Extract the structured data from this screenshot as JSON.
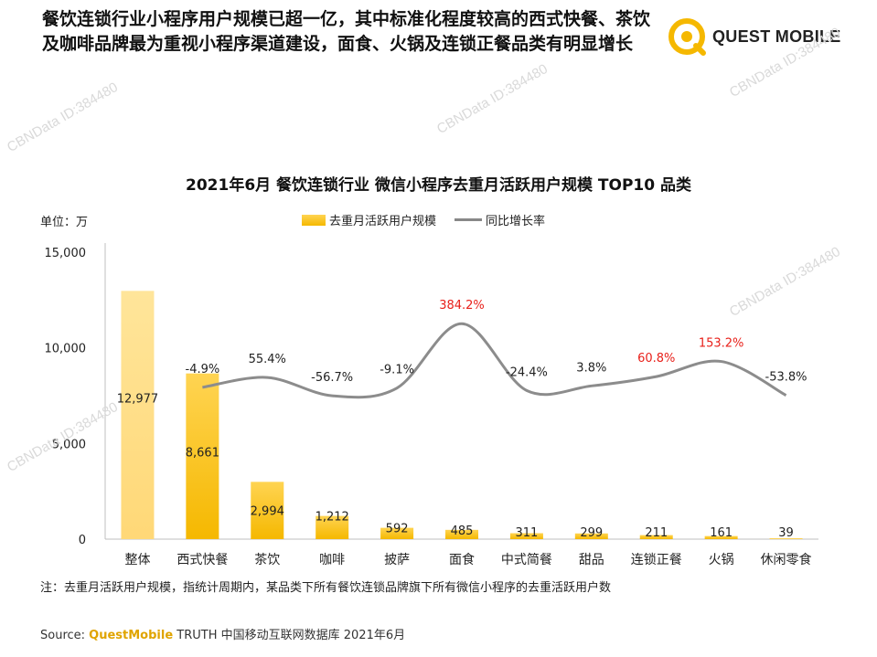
{
  "headline": "餐饮连锁行业小程序用户规模已超一亿，其中标准化程度较高的西式快餐、茶饮及咖啡品牌最为重视小程序渠道建设，面食、火锅及连锁正餐品类有明显增长",
  "logo_text": "QUEST MOBILE",
  "watermark": "CBNData ID:384480",
  "chart_data": {
    "type": "bar",
    "title": "2021年6月 餐饮连锁行业 微信小程序去重月活跃用户规模 TOP10 品类",
    "unit_label": "单位：万",
    "categories": [
      "整体",
      "西式快餐",
      "茶饮",
      "咖啡",
      "披萨",
      "面食",
      "中式简餐",
      "甜品",
      "连锁正餐",
      "火锅",
      "休闲零食"
    ],
    "series": [
      {
        "name": "去重月活跃用户规模",
        "type": "bar",
        "values": [
          12977,
          8661,
          2994,
          1212,
          592,
          485,
          311,
          299,
          211,
          161,
          39
        ],
        "labels": [
          "12,977",
          "8,661",
          "2,994",
          "1,212",
          "592",
          "485",
          "311",
          "299",
          "211",
          "161",
          "39"
        ]
      },
      {
        "name": "同比增长率",
        "type": "line",
        "values": [
          null,
          -4.9,
          55.4,
          -56.7,
          -9.1,
          384.2,
          -24.4,
          3.8,
          60.8,
          153.2,
          -53.8
        ],
        "labels": [
          "",
          "-4.9%",
          "55.4%",
          "-56.7%",
          "-9.1%",
          "384.2%",
          "-24.4%",
          "3.8%",
          "60.8%",
          "153.2%",
          "-53.8%"
        ],
        "highlight": [
          false,
          false,
          false,
          false,
          false,
          true,
          false,
          false,
          true,
          true,
          false
        ]
      }
    ],
    "yticks": [
      "0",
      "5,000",
      "10,000",
      "15,000"
    ],
    "ylim": [
      0,
      15000
    ],
    "colors": {
      "bar": "#f5b800",
      "bar_first": "#ffe59a",
      "line": "#8c8c8c",
      "highlight": "#e8201a"
    }
  },
  "note": "注：去重月活跃用户规模，指统计周期内，某品类下所有餐饮连锁品牌旗下所有微信小程序的去重活跃用户数",
  "source": {
    "prefix": "Source:",
    "brand": "QuestMobile",
    "rest": "TRUTH 中国移动互联网数据库 2021年6月"
  }
}
